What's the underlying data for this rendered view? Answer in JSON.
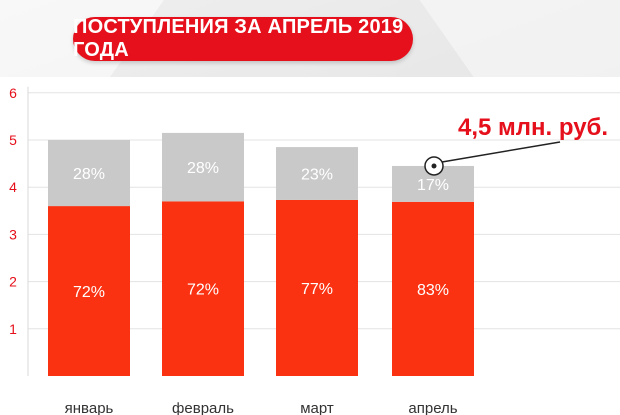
{
  "header": {
    "title": "ПОСТУПЛЕНИЯ ЗА АПРЕЛЬ 2019 ГОДА"
  },
  "colors": {
    "accent": "#e5101b",
    "bar_bottom": "#fa3212",
    "bar_top": "#c9c9c9",
    "axis_text": "#e5101b"
  },
  "annotation": {
    "text": "4,5 млн. руб.",
    "icon": "dot-marker-icon",
    "category": "апрель"
  },
  "chart_data": {
    "type": "bar",
    "stacked": true,
    "categories": [
      "январь",
      "февраль",
      "март",
      "апрель"
    ],
    "totals": [
      5.0,
      5.15,
      4.85,
      4.45
    ],
    "series": [
      {
        "values": [
          3.6,
          3.7,
          3.73,
          3.69
        ],
        "labels": [
          "72%",
          "72%",
          "77%",
          "83%"
        ]
      },
      {
        "values": [
          1.4,
          1.45,
          1.12,
          0.76
        ],
        "labels": [
          "28%",
          "28%",
          "23%",
          "17%"
        ]
      }
    ],
    "yticks": [
      "1",
      "2",
      "3",
      "4",
      "5",
      "6"
    ],
    "ylim": [
      0,
      6
    ],
    "grid": true,
    "legend": "none"
  }
}
